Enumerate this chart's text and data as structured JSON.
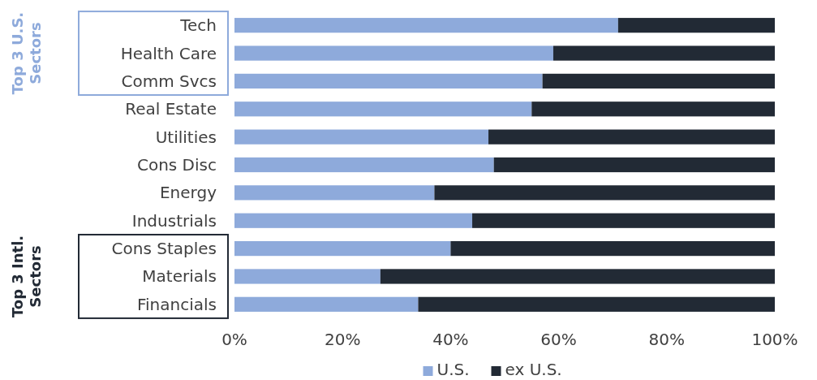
{
  "chart_data": {
    "type": "bar",
    "orientation": "horizontal",
    "stacked": true,
    "categories": [
      "Tech",
      "Health Care",
      "Comm Svcs",
      "Real Estate",
      "Utilities",
      "Cons Disc",
      "Energy",
      "Industrials",
      "Cons Staples",
      "Materials",
      "Financials"
    ],
    "series": [
      {
        "name": "U.S.",
        "color": "#8eaadb",
        "values": [
          71,
          59,
          57,
          55,
          47,
          48,
          37,
          44,
          40,
          27,
          34
        ]
      },
      {
        "name": "ex U.S.",
        "color": "#222a35",
        "values": [
          29,
          41,
          43,
          45,
          53,
          52,
          63,
          56,
          60,
          73,
          66
        ]
      }
    ],
    "xlim": [
      0,
      100
    ],
    "xticks": [
      {
        "value": 0,
        "label": "0%"
      },
      {
        "value": 20,
        "label": "20%"
      },
      {
        "value": 40,
        "label": "40%"
      },
      {
        "value": 60,
        "label": "60%"
      },
      {
        "value": 80,
        "label": "80%"
      },
      {
        "value": 100,
        "label": "100%"
      }
    ],
    "grid": false,
    "legend": "bottom",
    "annotations": [
      "Top 3 U.S. Sectors",
      "Top 3 Intl. Sectors"
    ]
  }
}
